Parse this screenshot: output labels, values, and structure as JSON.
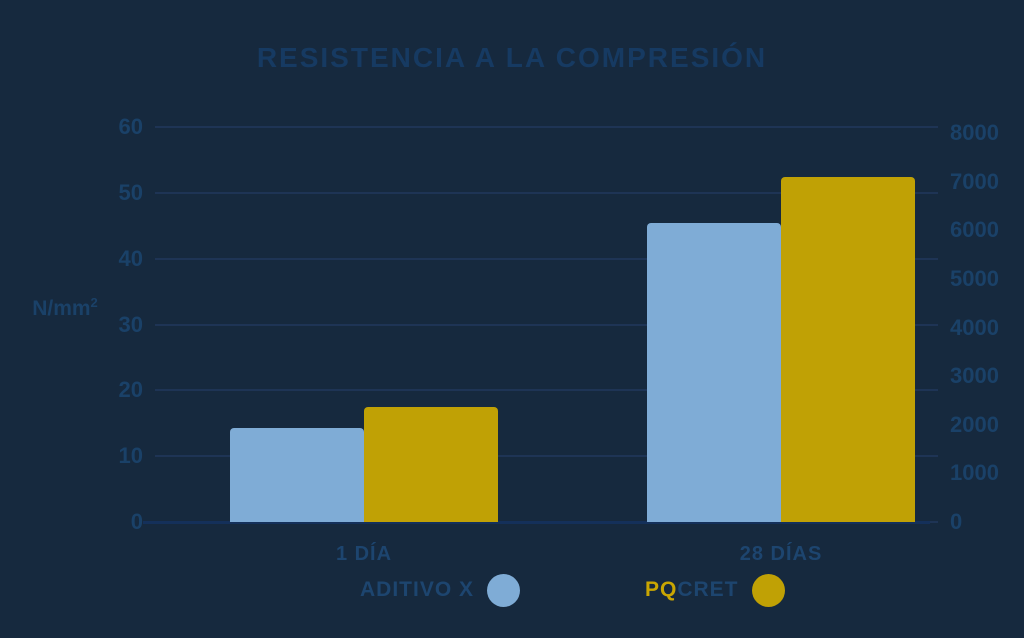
{
  "title": "RESISTENCIA A LA COMPRESIÓN",
  "colors": {
    "background": "#16293E",
    "title_text": "#163A62",
    "axis_text": "#1A4168",
    "category_text": "#1D456F",
    "gridline": "#1E3455",
    "axis_line": "#14305A",
    "series_blue": "#7FACD6",
    "series_gold": "#C0A105",
    "legend_accent_gold": "#C9A602"
  },
  "chart_data": {
    "type": "bar",
    "title": "RESISTENCIA A LA COMPRESIÓN",
    "categories": [
      "1 DÍA",
      "28 DÍAS"
    ],
    "series": [
      {
        "name": "ADITIVO X",
        "color": "#7FACD6",
        "values": [
          14.3,
          45.4
        ]
      },
      {
        "name": "PQCRET",
        "color": "#C0A105",
        "values": [
          17.5,
          52.4
        ]
      }
    ],
    "left_axis": {
      "label": "N/mm²",
      "ticks": [
        0,
        10,
        20,
        30,
        40,
        50,
        60
      ],
      "range": [
        0,
        60
      ]
    },
    "right_axis": {
      "label": "",
      "ticks": [
        0,
        1000,
        2000,
        3000,
        4000,
        5000,
        6000,
        7000,
        8000
      ],
      "range": [
        0,
        8000
      ]
    },
    "grid": true,
    "legend_position": "bottom"
  },
  "y_axis_label": {
    "base": "N/mm",
    "exp": "2"
  },
  "legend": {
    "items": [
      {
        "label": "ADITIVO X",
        "swatch_color": "#7FACD6"
      },
      {
        "label_accent": "PQ",
        "label_rest": "CRET",
        "swatch_color": "#C0A105"
      }
    ]
  }
}
